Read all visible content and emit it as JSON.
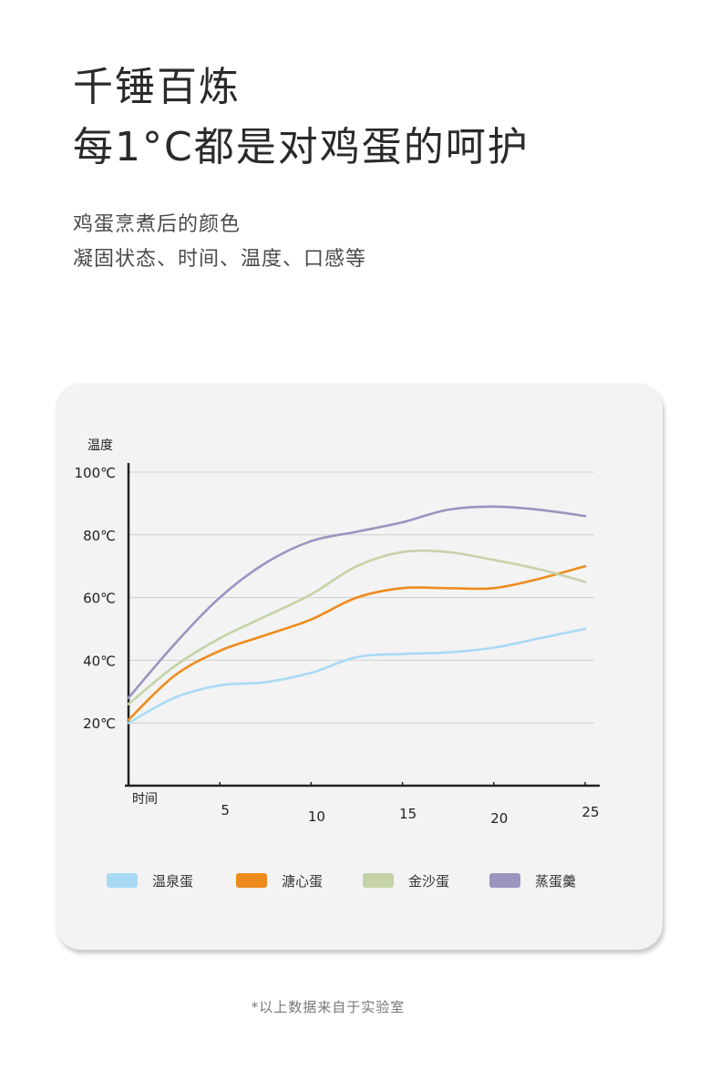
{
  "title_line1": "千锤百炼",
  "title_line2": "每1°C都是对鸡蛋的呵护",
  "subtitle_line1": "鸡蛋烹煮后的颜色",
  "subtitle_line2": "凝固状态、时间、温度、口感等",
  "footnote": "*以上数据来自于实验室",
  "chart_data": {
    "type": "line",
    "ylabel": "温度",
    "xlabel": "时间",
    "x_ticks": [
      5,
      10,
      15,
      20,
      25
    ],
    "x_tick_labels": [
      "5",
      "10",
      "15",
      "20",
      "25"
    ],
    "y_ticks": [
      20,
      40,
      60,
      80,
      100
    ],
    "y_tick_labels": [
      "20℃",
      "40℃",
      "60℃",
      "80℃",
      "100℃"
    ],
    "xlim": [
      0,
      25.5
    ],
    "ylim": [
      0,
      100
    ],
    "grid": true,
    "legend_position": "bottom",
    "x": [
      0,
      2.5,
      5,
      7.5,
      10,
      12.5,
      15,
      17.5,
      20,
      22.5,
      25
    ],
    "series": [
      {
        "name": "温泉蛋",
        "color": "#a9daf4",
        "values": [
          20,
          28,
          32,
          33,
          36,
          41,
          42,
          42.5,
          44,
          47,
          50
        ]
      },
      {
        "name": "溏心蛋",
        "color": "#ef8b1c",
        "values": [
          21,
          35,
          43,
          48,
          53,
          60,
          63,
          63,
          63,
          66,
          70
        ]
      },
      {
        "name": "金沙蛋",
        "color": "#c4d3a8",
        "values": [
          26,
          38,
          47,
          54,
          61,
          70,
          74.5,
          74.5,
          72,
          69,
          65
        ]
      },
      {
        "name": "蒸蛋羹",
        "color": "#9c94bf",
        "values": [
          28,
          45,
          60,
          71,
          78,
          81,
          84,
          88,
          89,
          88,
          86
        ]
      }
    ]
  }
}
